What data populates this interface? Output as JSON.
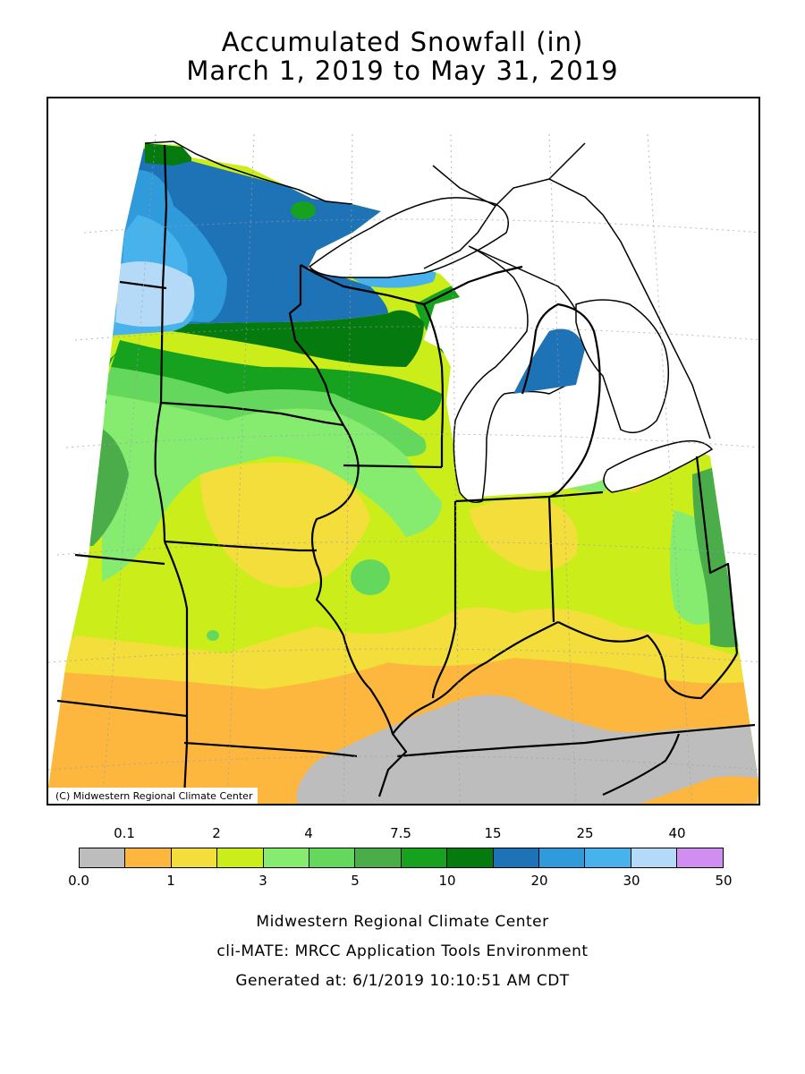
{
  "title": {
    "line1": "Accumulated Snowfall (in)",
    "line2": "March 1, 2019 to May 31, 2019"
  },
  "map": {
    "copyright": "(C) Midwestern Regional Climate Center"
  },
  "legend": {
    "upper_labels": [
      "0.1",
      "2",
      "4",
      "7.5",
      "15",
      "25",
      "40"
    ],
    "lower_labels": [
      "0.0",
      "1",
      "3",
      "5",
      "10",
      "20",
      "30",
      "50"
    ],
    "colors": [
      "#bdbdbd",
      "#fdb73f",
      "#f3de3b",
      "#cbee1b",
      "#86ec70",
      "#64d85d",
      "#4aad4a",
      "#16a21e",
      "#057a0f",
      "#1d73b6",
      "#2f9bdb",
      "#47b2ec",
      "#b5daf8",
      "#d08ef0"
    ]
  },
  "footer": {
    "line1": "Midwestern Regional Climate Center",
    "line2": "cli-MATE: MRCC Application Tools Environment",
    "line3": "Generated at: 6/1/2019 10:10:51 AM CDT"
  }
}
